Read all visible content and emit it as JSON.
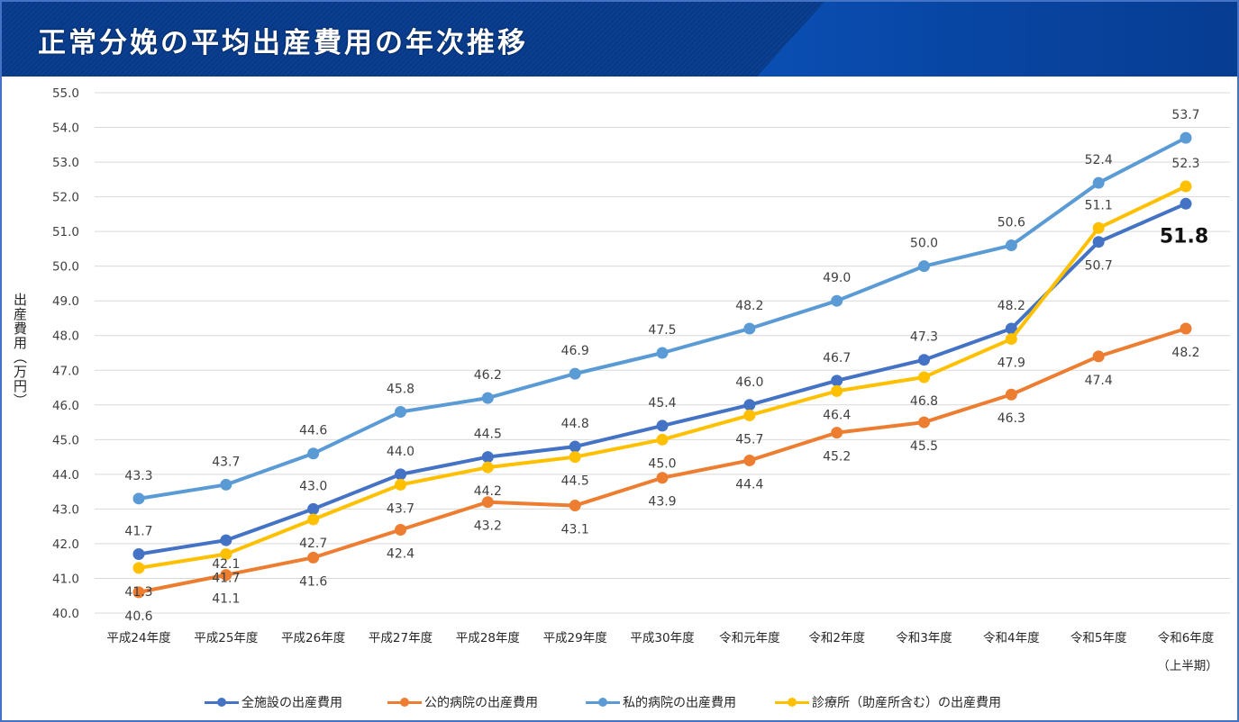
{
  "header": {
    "title": "正常分娩の平均出産費用の年次推移"
  },
  "colors": {
    "all": "#4472c4",
    "public": "#ed7d31",
    "private": "#5b9bd5",
    "clinic": "#ffc000"
  },
  "chart_data": {
    "type": "line",
    "title": "正常分娩の平均出産費用の年次推移",
    "xlabel": "",
    "ylabel": "出産費用（万円）",
    "ylim": [
      40.0,
      55.0
    ],
    "ytick_step": 1.0,
    "yticks": [
      "40.0",
      "41.0",
      "42.0",
      "43.0",
      "44.0",
      "45.0",
      "46.0",
      "47.0",
      "48.0",
      "49.0",
      "50.0",
      "51.0",
      "52.0",
      "53.0",
      "54.0",
      "55.0"
    ],
    "grid": true,
    "legend_position": "bottom",
    "categories": [
      "平成24年度",
      "平成25年度",
      "平成26年度",
      "平成27年度",
      "平成28年度",
      "平成29年度",
      "平成30年度",
      "令和元年度",
      "令和2年度",
      "令和3年度",
      "令和4年度",
      "令和5年度",
      "令和6年度"
    ],
    "category_notes": {
      "12": "（上半期）"
    },
    "series": [
      {
        "key": "all",
        "name": "全施設の出産費用",
        "values": [
          41.7,
          42.1,
          43.0,
          44.0,
          44.5,
          44.8,
          45.4,
          46.0,
          46.7,
          47.3,
          48.2,
          50.7,
          51.8
        ],
        "label_pos": [
          "above",
          "below",
          "above",
          "above",
          "above",
          "above",
          "above",
          "above",
          "above",
          "above",
          "above",
          "below",
          "highlight"
        ]
      },
      {
        "key": "public",
        "name": "公的病院の出産費用",
        "values": [
          40.6,
          41.1,
          41.6,
          42.4,
          43.2,
          43.1,
          43.9,
          44.4,
          45.2,
          45.5,
          46.3,
          47.4,
          48.2
        ],
        "label_pos": [
          "below",
          "below",
          "below",
          "below",
          "below",
          "below",
          "below",
          "below",
          "below",
          "below",
          "below",
          "below",
          "below"
        ]
      },
      {
        "key": "private",
        "name": "私的病院の出産費用",
        "values": [
          43.3,
          43.7,
          44.6,
          45.8,
          46.2,
          46.9,
          47.5,
          48.2,
          49.0,
          50.0,
          50.6,
          52.4,
          53.7
        ],
        "label_pos": [
          "above",
          "above",
          "above",
          "above",
          "above",
          "above",
          "above",
          "above",
          "above",
          "above",
          "above",
          "above",
          "above"
        ]
      },
      {
        "key": "clinic",
        "name": "診療所（助産所含む）の出産費用",
        "values": [
          41.3,
          41.7,
          42.7,
          43.7,
          44.2,
          44.5,
          45.0,
          45.7,
          46.4,
          46.8,
          47.9,
          51.1,
          52.3
        ],
        "label_pos": [
          "below",
          "below",
          "below",
          "below",
          "below",
          "below",
          "below",
          "below",
          "below",
          "below",
          "below",
          "above",
          "above"
        ]
      }
    ]
  },
  "legend": [
    {
      "key": "all",
      "label": "全施設の出産費用"
    },
    {
      "key": "public",
      "label": "公的病院の出産費用"
    },
    {
      "key": "private",
      "label": "私的病院の出産費用"
    },
    {
      "key": "clinic",
      "label": "診療所（助産所含む）の出産費用"
    }
  ]
}
